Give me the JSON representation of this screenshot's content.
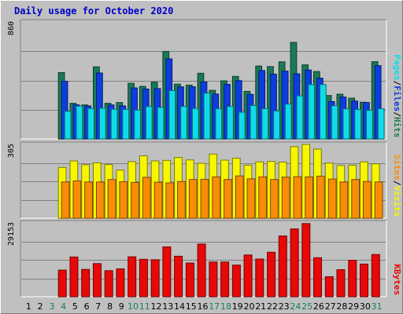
{
  "title": "Daily usage for October 2020",
  "colors": {
    "hits": "#1a7a56",
    "files": "#0c3ede",
    "pages": "#11dbe9",
    "visits": "#f6f600",
    "sites": "#f98d08",
    "kbytes": "#e80808",
    "weekend_day_label": "#16805a",
    "weekday_day_label": "#000000"
  },
  "chart_data": [
    {
      "type": "bar",
      "panel": "top",
      "y_tick_label": "860",
      "ylim": [
        0,
        860
      ],
      "grid": true,
      "side_labels": [
        "Pages",
        "/",
        "Files",
        "/",
        "Hits"
      ],
      "categories": [
        "1",
        "2",
        "3",
        "4",
        "5",
        "6",
        "7",
        "8",
        "9",
        "10",
        "11",
        "12",
        "13",
        "14",
        "15",
        "16",
        "17",
        "18",
        "19",
        "20",
        "21",
        "22",
        "23",
        "24",
        "25",
        "26",
        "27",
        "28",
        "29",
        "30",
        "31"
      ],
      "series": [
        {
          "name": "Hits",
          "values": [
            0,
            0,
            0,
            488,
            262,
            250,
            530,
            262,
            268,
            409,
            387,
            418,
            643,
            403,
            396,
            483,
            357,
            427,
            460,
            350,
            536,
            532,
            567,
            710,
            545,
            496,
            319,
            329,
            300,
            270,
            568
          ]
        },
        {
          "name": "Files",
          "values": [
            0,
            0,
            0,
            424,
            251,
            243,
            485,
            250,
            243,
            375,
            367,
            370,
            589,
            383,
            384,
            419,
            330,
            402,
            429,
            327,
            503,
            477,
            499,
            479,
            507,
            447,
            275,
            308,
            279,
            268,
            539
          ]
        },
        {
          "name": "Pages",
          "values": [
            0,
            0,
            0,
            203,
            241,
            224,
            226,
            219,
            217,
            212,
            238,
            232,
            355,
            239,
            224,
            337,
            223,
            239,
            196,
            246,
            222,
            206,
            256,
            317,
            400,
            400,
            244,
            221,
            216,
            210,
            222
          ]
        }
      ]
    },
    {
      "type": "bar",
      "panel": "middle",
      "y_tick_label": "305",
      "ylim": [
        0,
        305
      ],
      "grid": true,
      "side_labels": [
        "Sites",
        "/",
        "Visits"
      ],
      "categories": [
        "1",
        "2",
        "3",
        "4",
        "5",
        "6",
        "7",
        "8",
        "9",
        "10",
        "11",
        "12",
        "13",
        "14",
        "15",
        "16",
        "17",
        "18",
        "19",
        "20",
        "21",
        "22",
        "23",
        "24",
        "25",
        "26",
        "27",
        "28",
        "29",
        "30",
        "31"
      ],
      "series": [
        {
          "name": "Visits",
          "values": [
            0,
            0,
            0,
            210,
            237,
            221,
            229,
            222,
            199,
            234,
            258,
            237,
            239,
            251,
            241,
            227,
            265,
            240,
            248,
            219,
            233,
            235,
            232,
            296,
            305,
            286,
            228,
            218,
            219,
            233,
            225
          ]
        },
        {
          "name": "Sites",
          "values": [
            0,
            0,
            0,
            150,
            154,
            150,
            150,
            160,
            151,
            148,
            169,
            149,
            146,
            152,
            160,
            161,
            171,
            160,
            175,
            163,
            171,
            160,
            170,
            172,
            171,
            174,
            162,
            150,
            160,
            152,
            150
          ]
        }
      ]
    },
    {
      "type": "bar",
      "panel": "bottom",
      "y_tick_label": "29153",
      "ylim": [
        0,
        29153
      ],
      "grid": true,
      "side_labels": [
        "KBytes"
      ],
      "categories": [
        "1",
        "2",
        "3",
        "4",
        "5",
        "6",
        "7",
        "8",
        "9",
        "10",
        "11",
        "12",
        "13",
        "14",
        "15",
        "16",
        "17",
        "18",
        "19",
        "20",
        "21",
        "22",
        "23",
        "24",
        "25",
        "26",
        "27",
        "28",
        "29",
        "30",
        "31"
      ],
      "series": [
        {
          "name": "KBytes",
          "values": [
            0,
            0,
            0,
            10500,
            15700,
            10800,
            13100,
            10300,
            11000,
            15800,
            14800,
            14600,
            19700,
            16000,
            13300,
            20800,
            13700,
            13700,
            12500,
            16500,
            14900,
            17600,
            24000,
            26800,
            28900,
            15400,
            7900,
            10700,
            14400,
            12900,
            16700
          ]
        }
      ]
    }
  ],
  "x_labels": [
    "1",
    "2",
    "3",
    "4",
    "5",
    "6",
    "7",
    "8",
    "9",
    "10",
    "11",
    "12",
    "13",
    "14",
    "15",
    "16",
    "17",
    "18",
    "19",
    "20",
    "21",
    "22",
    "23",
    "24",
    "25",
    "26",
    "27",
    "28",
    "29",
    "30",
    "31"
  ],
  "weekend_days": [
    3,
    4,
    10,
    11,
    17,
    18,
    24,
    25,
    31
  ]
}
